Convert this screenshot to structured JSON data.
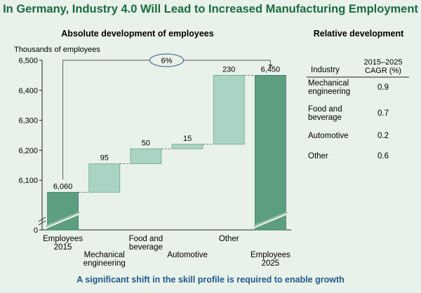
{
  "title": "In Germany, Industry 4.0 Will Lead to Increased Manufacturing Employment",
  "footer": "A significant shift in the skill profile is required to enable growth",
  "chart_data": [
    {
      "type": "bar",
      "subtype": "waterfall",
      "title": "Absolute development of employees",
      "ylabel": "Thousands of employees",
      "ylim": [
        6000,
        6500
      ],
      "y_axis_break": true,
      "y_ticks": [
        "0",
        "6,100",
        "6,200",
        "6,300",
        "6,400",
        "6,500"
      ],
      "categories": [
        [
          "Employees",
          "2015"
        ],
        [
          "Mechanical",
          "engineering"
        ],
        [
          "Food and",
          "beverage"
        ],
        [
          "Automotive"
        ],
        [
          "Other"
        ],
        [
          "Employees",
          "2025"
        ]
      ],
      "values": [
        6060,
        95,
        50,
        15,
        230,
        6450
      ],
      "value_labels": [
        "6,060",
        "95",
        "50",
        "15",
        "230",
        "6,450"
      ],
      "bar_kinds": [
        "total",
        "delta",
        "delta",
        "delta",
        "delta",
        "total"
      ],
      "growth_label": "6%",
      "colors": {
        "total": "#5d9e80",
        "delta": "#a9d3c2"
      }
    },
    {
      "type": "table",
      "title": "Relative development",
      "columns": [
        "Industry",
        "2015–2025 CAGR (%)"
      ],
      "rows": [
        {
          "industry": "Mechanical engineering",
          "industry_lines": [
            "Mechanical",
            "engineering"
          ],
          "cagr": "0.9"
        },
        {
          "industry": "Food and beverage",
          "industry_lines": [
            "Food and",
            "beverage"
          ],
          "cagr": "0.7"
        },
        {
          "industry": "Automotive",
          "industry_lines": [
            "Automotive"
          ],
          "cagr": "0.2"
        },
        {
          "industry": "Other",
          "industry_lines": [
            "Other"
          ],
          "cagr": "0.6"
        }
      ]
    }
  ]
}
